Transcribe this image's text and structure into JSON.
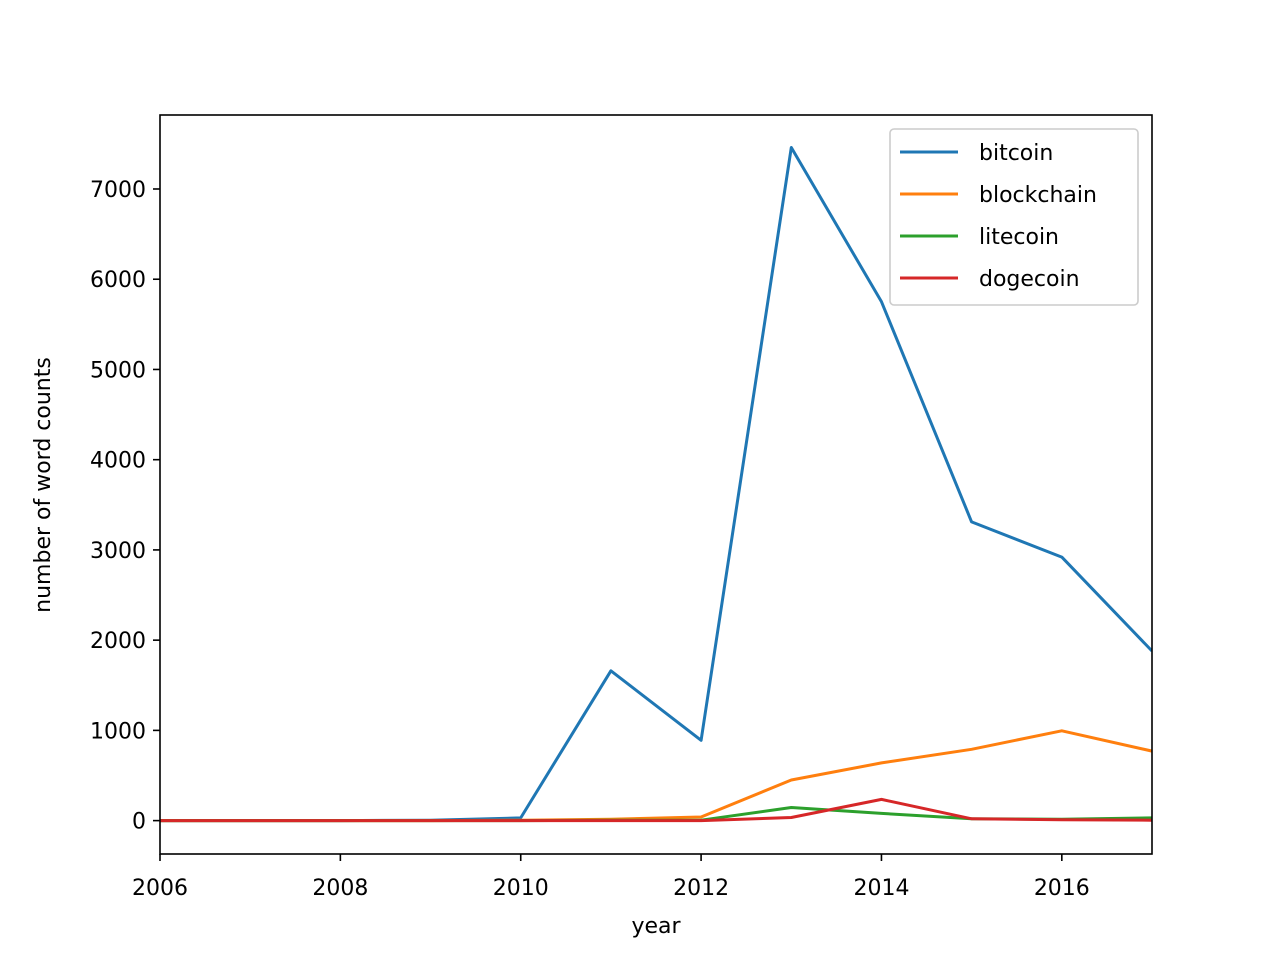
{
  "chart_data": {
    "type": "line",
    "title": "",
    "xlabel": "year",
    "ylabel": "number of word counts",
    "xlim": [
      2006,
      2017
    ],
    "ylim": [
      -370,
      7820
    ],
    "x_ticks": [
      2006,
      2008,
      2010,
      2012,
      2014,
      2016
    ],
    "x_tick_labels": [
      "2006",
      "2008",
      "2010",
      "2012",
      "2014",
      "2016"
    ],
    "y_ticks": [
      0,
      1000,
      2000,
      3000,
      4000,
      5000,
      6000,
      7000
    ],
    "y_tick_labels": [
      "0",
      "1000",
      "2000",
      "3000",
      "4000",
      "5000",
      "6000",
      "7000"
    ],
    "grid": false,
    "legend_position": "top-right",
    "x": [
      2006,
      2007,
      2008,
      2009,
      2010,
      2011,
      2012,
      2013,
      2014,
      2015,
      2016,
      2017
    ],
    "series": [
      {
        "name": "bitcoin",
        "color": "#1f77b4",
        "values": [
          0,
          0,
          0,
          5,
          30,
          1660,
          890,
          7460,
          5750,
          3310,
          2920,
          1880
        ]
      },
      {
        "name": "blockchain",
        "color": "#ff7f0e",
        "values": [
          0,
          0,
          0,
          0,
          5,
          15,
          40,
          450,
          640,
          790,
          995,
          770
        ]
      },
      {
        "name": "litecoin",
        "color": "#2ca02c",
        "values": [
          0,
          0,
          0,
          0,
          0,
          5,
          5,
          145,
          80,
          20,
          15,
          30
        ]
      },
      {
        "name": "dogecoin",
        "color": "#d62728",
        "values": [
          0,
          0,
          0,
          0,
          0,
          0,
          0,
          35,
          235,
          20,
          10,
          5
        ]
      }
    ]
  }
}
